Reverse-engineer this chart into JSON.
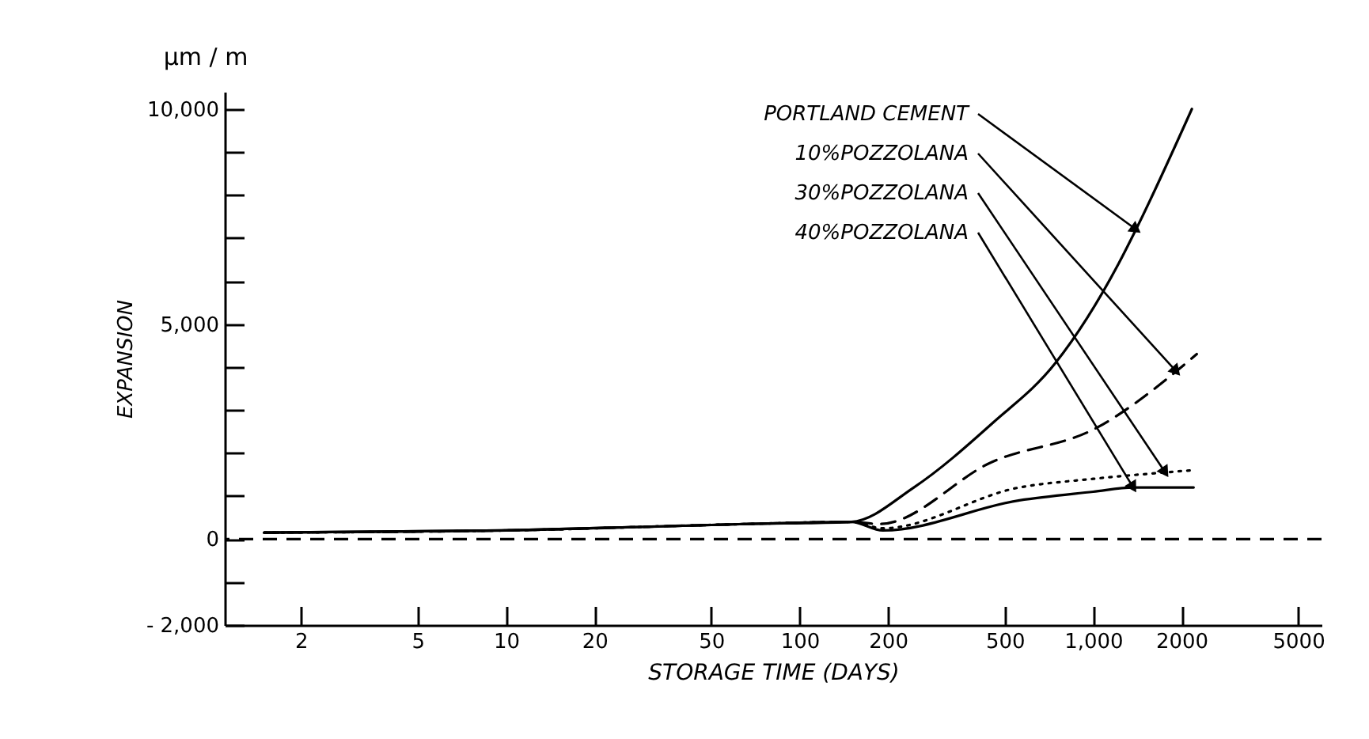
{
  "chart_data": {
    "type": "line",
    "xlabel": "STORAGE TIME (DAYS)",
    "ylabel": "EXPANSION",
    "annotations": [
      "µm / m"
    ],
    "log": "x",
    "xlim": [
      1.1,
      6000
    ],
    "ylim": [
      -2000,
      10400
    ],
    "xticks": [
      2,
      5,
      10,
      20,
      50,
      100,
      200,
      500,
      {
        "value": 1000,
        "label": "1,000"
      },
      2000,
      5000
    ],
    "yticks": [
      {
        "value": -2000,
        "label": "- 2,000"
      },
      {
        "value": -1000,
        "label": null
      },
      0,
      {
        "value": 1000,
        "label": null
      },
      {
        "value": 2000,
        "label": null
      },
      {
        "value": 3000,
        "label": null
      },
      {
        "value": 4000,
        "label": null
      },
      {
        "value": 5000,
        "label": "5,000"
      },
      {
        "value": 6000,
        "label": null
      },
      {
        "value": 7000,
        "label": null
      },
      {
        "value": 8000,
        "label": null
      },
      {
        "value": 9000,
        "label": null
      },
      {
        "value": 10000,
        "label": "10,000"
      }
    ],
    "grid": false,
    "legend": false,
    "ref_lines": [
      {
        "axis": "y",
        "value": 0,
        "color": "#000000",
        "line_style": "dashed"
      }
    ],
    "series": [
      {
        "name": "PORTLAND CEMENT",
        "color": "#000000",
        "line_style": "solid",
        "x": [
          1.5,
          10,
          66,
          150,
          245,
          455,
          745,
          1220,
          1400,
          2170
        ],
        "values": [
          150,
          200,
          350,
          400,
          1200,
          2700,
          4100,
          6400,
          7200,
          10000
        ]
      },
      {
        "name": "10%POZZOLANA",
        "color": "#000000",
        "line_style": "dashed",
        "x": [
          1.5,
          10,
          66,
          150,
          187,
          455,
          1037,
          1920,
          2255
        ],
        "values": [
          150,
          200,
          350,
          400,
          350,
          1800,
          2600,
          3900,
          4300
        ]
      },
      {
        "name": "30%POZZOLANA",
        "color": "#000000",
        "line_style": "dotted",
        "x": [
          1.5,
          10,
          66,
          150,
          192,
          561,
          1000,
          1760,
          2170
        ],
        "values": [
          150,
          200,
          350,
          400,
          250,
          1200,
          1400,
          1550,
          1600
        ]
      },
      {
        "name": "40%POZZOLANA",
        "color": "#000000",
        "line_style": "solid",
        "x": [
          1.5,
          10,
          66,
          150,
          192,
          561,
          1000,
          1370,
          2200
        ],
        "values": [
          150,
          200,
          350,
          400,
          200,
          900,
          1100,
          1200,
          1200
        ]
      }
    ]
  }
}
